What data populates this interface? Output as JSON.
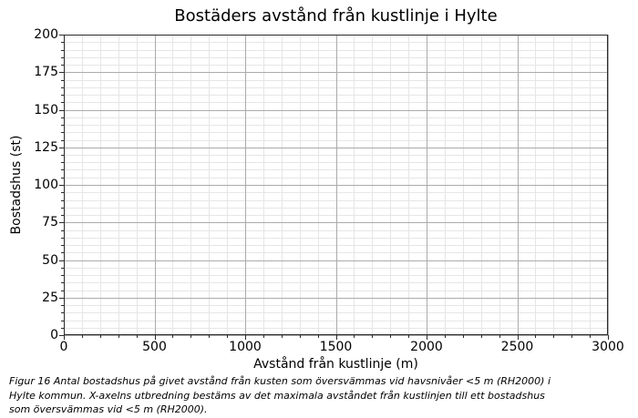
{
  "figure": {
    "title": "Bostäders avstånd från kustlinje i Hylte",
    "caption_lines": [
      "Figur 16 Antal bostadshus på givet avstånd från kusten som översvämmas vid havsnivåer <5 m (RH2000) i",
      "Hylte kommun. X-axelns utbredning bestäms av det maximala avståndet från kustlinjen till ett bostadshus",
      "som översvämmas vid <5 m (RH2000)."
    ]
  },
  "chart_data": {
    "type": "bar",
    "title": "Bostäders avstånd från kustlinje i Hylte",
    "xlabel": "Avstånd från kustlinje (m)",
    "ylabel": "Bostadshus (st)",
    "xlim": [
      0,
      3000
    ],
    "ylim": [
      0,
      200
    ],
    "x_major_ticks": [
      0,
      500,
      1000,
      1500,
      2000,
      2500,
      3000
    ],
    "y_major_ticks": [
      0,
      25,
      50,
      75,
      100,
      125,
      150,
      175,
      200
    ],
    "x_minor_step": 100,
    "y_minor_step": 5,
    "grid": "both",
    "legend": "none",
    "series": []
  },
  "colors": {
    "background": "#ffffff",
    "text": "#000000",
    "spine": "#2b2b2b",
    "major_grid": "#ababab",
    "minor_grid": "#e6e6e6"
  }
}
